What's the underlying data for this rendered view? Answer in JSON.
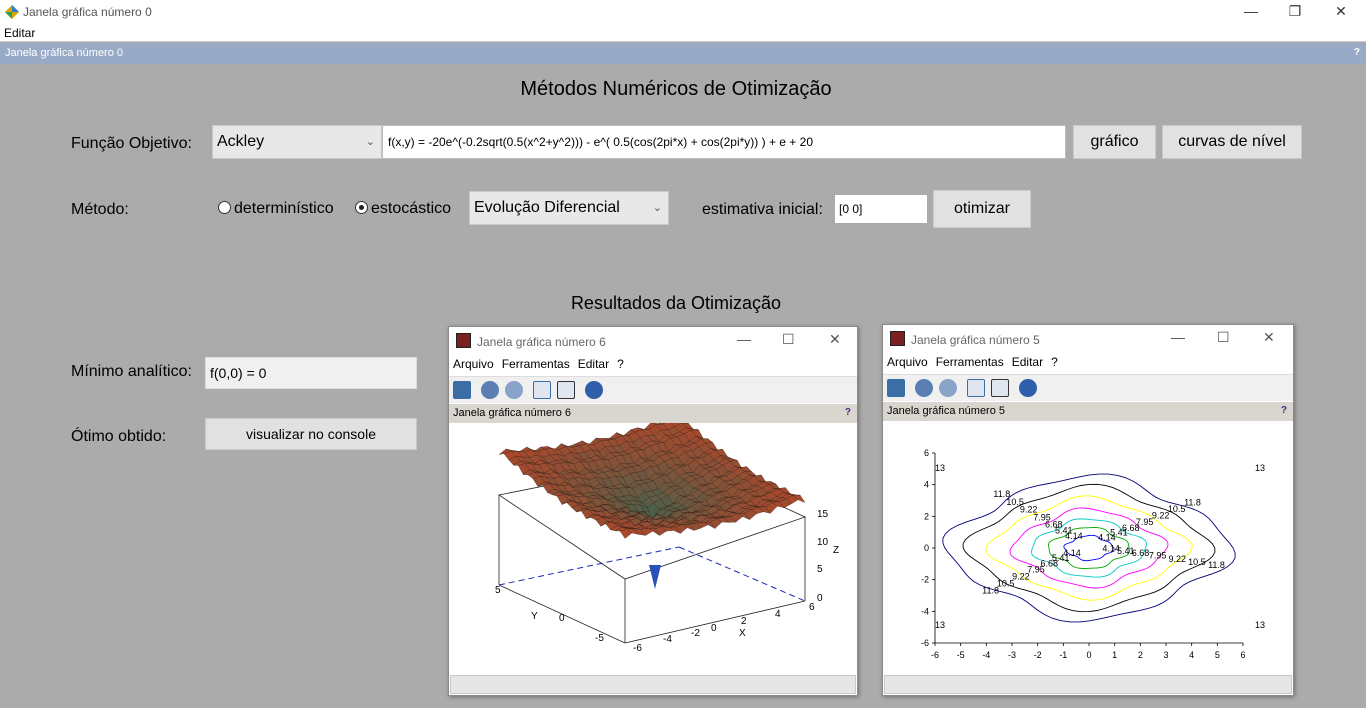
{
  "window": {
    "title": "Janela gráfica número 0",
    "menu_edit": "Editar",
    "doc_title": "Janela gráfica número 0",
    "help": "?",
    "minimize": "—",
    "maximize": "❐",
    "close": "✕"
  },
  "form": {
    "main_title": "Métodos Numéricos de Otimização",
    "objective_label": "Função Objetivo:",
    "function_select": "Ackley",
    "formula": "f(x,y) = -20e^(-0.2sqrt(0.5(x^2+y^2))) - e^( 0.5(cos(2pi*x) + cos(2pi*y)) ) + e + 20",
    "plot_button": "gráfico",
    "contour_button": "curvas de nível",
    "method_label": "Método:",
    "radio_deterministic": "determinístico",
    "radio_stochastic": "estocástico",
    "method_select": "Evolução Diferencial",
    "initial_label": "estimativa inicial:",
    "initial_value": "[0 0]",
    "optimize_button": "otimizar",
    "results_title": "Resultados da Otimização",
    "analytic_label": "Mínimo analítico:",
    "analytic_value": "f(0,0) = 0",
    "obtained_label": "Ótimo obtido:",
    "console_button": "visualizar no console"
  },
  "graphic_windows": [
    {
      "title": "Janela gráfica número 6",
      "menus": [
        "Arquivo",
        "Ferramentas",
        "Editar",
        "?"
      ],
      "doc_title": "Janela gráfica número 6",
      "help": "?",
      "minimize": "—",
      "maximize": "☐",
      "close": "✕",
      "axes": {
        "z_label": "Z",
        "y_label": "Y",
        "x_label": "X",
        "z_ticks": [
          "15",
          "10",
          "5",
          "0"
        ],
        "x_ticks": [
          "-6",
          "-4",
          "-2",
          "0",
          "2",
          "4",
          "6"
        ],
        "y_ticks": [
          "5",
          "0",
          "-5"
        ]
      }
    },
    {
      "title": "Janela gráfica número 5",
      "menus": [
        "Arquivo",
        "Ferramentas",
        "Editar",
        "?"
      ],
      "doc_title": "Janela gráfica número 5",
      "help": "?",
      "minimize": "—",
      "maximize": "☐",
      "close": "✕",
      "axes": {
        "x_ticks": [
          "-6",
          "-5",
          "-4",
          "-3",
          "-2",
          "-1",
          "0",
          "1",
          "2",
          "3",
          "4",
          "5",
          "6"
        ],
        "y_ticks": [
          "6",
          "4",
          "2",
          "0",
          "-2",
          "-4",
          "-6"
        ]
      },
      "contour_levels": [
        "13",
        "11.8",
        "10.5",
        "9.22",
        "7.95",
        "6.68",
        "5.41",
        "4.14",
        "2.87"
      ],
      "contour_colors": [
        "#00007a",
        "#000000",
        "#ffff00",
        "#ff00ff",
        "#00c8c8",
        "#00aa00",
        "#0000ff"
      ]
    }
  ]
}
